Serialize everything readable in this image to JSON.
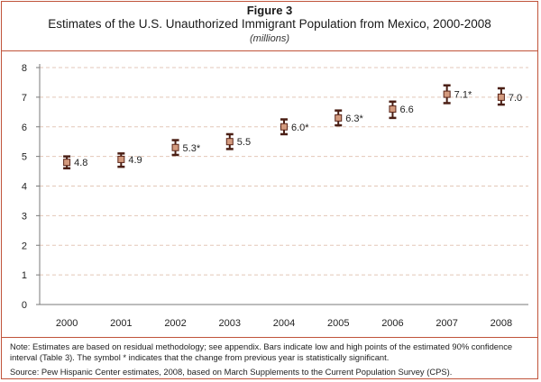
{
  "header": {
    "figure_label": "Figure 3",
    "title": "Estimates of the U.S. Unauthorized Immigrant Population from Mexico, 2000-2008",
    "units": "(millions)"
  },
  "footer": {
    "note": "Note: Estimates are based on residual methodology; see appendix. Bars indicate low and high points of the estimated 90% confidence interval (Table 3). The symbol * indicates that the change from previous year is statistically significant.",
    "source": "Source: Pew Hispanic Center estimates, 2008, based on March Supplements to the Current Population Survey (CPS)."
  },
  "colors": {
    "frame": "#c0533a",
    "marker_fill": "#d39a7e",
    "marker_stroke": "#5a2418",
    "error_bar": "#4a1e14",
    "gridline": "#e3c7b8",
    "axis": "#7a7a7a"
  },
  "chart_data": {
    "type": "scatter",
    "title": "Estimates of the U.S. Unauthorized Immigrant Population from Mexico, 2000-2008",
    "subtitle": "(millions)",
    "xlabel": "",
    "ylabel": "",
    "categories": [
      "2000",
      "2001",
      "2002",
      "2003",
      "2004",
      "2005",
      "2006",
      "2007",
      "2008"
    ],
    "values": [
      4.8,
      4.9,
      5.3,
      5.5,
      6.0,
      6.3,
      6.6,
      7.1,
      7.0
    ],
    "error_low": [
      4.6,
      4.65,
      5.05,
      5.25,
      5.75,
      6.05,
      6.3,
      6.8,
      6.75
    ],
    "error_high": [
      5.0,
      5.1,
      5.55,
      5.75,
      6.25,
      6.55,
      6.85,
      7.4,
      7.3
    ],
    "data_labels": [
      "4.8",
      "4.9",
      "5.3*",
      "5.5",
      "6.0*",
      "6.3*",
      "6.6",
      "7.1*",
      "7.0"
    ],
    "ylim": [
      0,
      8
    ],
    "yticks": [
      "0",
      "1",
      "2",
      "3",
      "4",
      "5",
      "6",
      "7",
      "8"
    ],
    "grid": true,
    "legend": "none"
  }
}
